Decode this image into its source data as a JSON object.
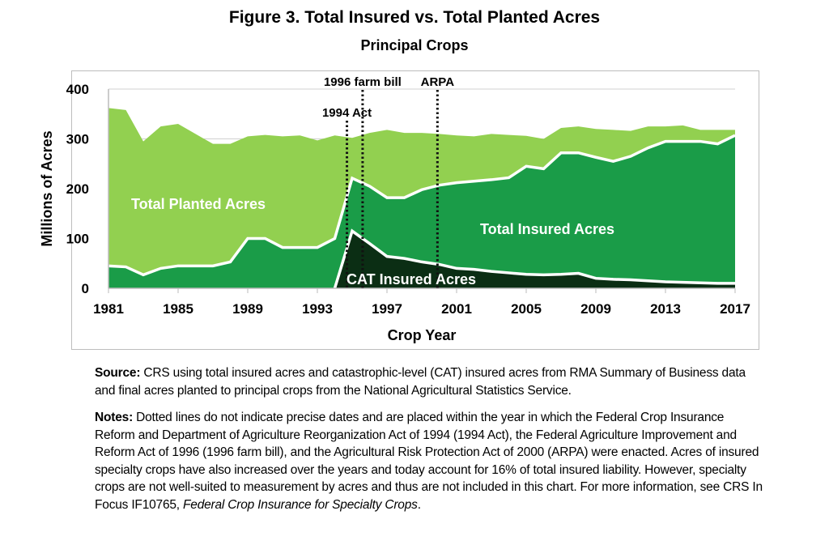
{
  "chart_data": {
    "type": "area",
    "title": "Figure 3. Total Insured vs. Total Planted Acres",
    "subtitle": "Principal Crops",
    "xlabel": "Crop Year",
    "ylabel": "Millions of Acres",
    "xlim": [
      1981,
      2017
    ],
    "ylim": [
      0,
      400
    ],
    "x_ticks": [
      "1981",
      "1985",
      "1989",
      "1993",
      "1997",
      "2001",
      "2005",
      "2009",
      "2013",
      "2017"
    ],
    "y_ticks": [
      "0",
      "100",
      "200",
      "300",
      "400"
    ],
    "grid": true,
    "x": [
      1981,
      1982,
      1983,
      1984,
      1985,
      1986,
      1987,
      1988,
      1989,
      1990,
      1991,
      1992,
      1993,
      1994,
      1995,
      1996,
      1997,
      1998,
      1999,
      2000,
      2001,
      2002,
      2003,
      2004,
      2005,
      2006,
      2007,
      2008,
      2009,
      2010,
      2011,
      2012,
      2013,
      2014,
      2015,
      2016,
      2017
    ],
    "series": [
      {
        "name": "Total Planted Acres",
        "color": "#92d050",
        "values": [
          362,
          358,
          295,
          325,
          330,
          310,
          290,
          290,
          305,
          308,
          305,
          307,
          297,
          307,
          302,
          312,
          318,
          312,
          312,
          310,
          307,
          305,
          310,
          308,
          306,
          300,
          322,
          325,
          320,
          318,
          316,
          325,
          325,
          327,
          318,
          318,
          318
        ]
      },
      {
        "name": "Total Insured Acres",
        "color": "#1a9c48",
        "values": [
          45,
          43,
          27,
          40,
          45,
          45,
          45,
          53,
          100,
          100,
          82,
          82,
          82,
          100,
          221,
          205,
          182,
          182,
          198,
          207,
          212,
          215,
          218,
          222,
          245,
          240,
          272,
          272,
          263,
          255,
          265,
          282,
          295,
          295,
          295,
          290,
          307
        ]
      },
      {
        "name": "CAT Insured Acres",
        "color": "#0b2e14",
        "values": [
          null,
          null,
          null,
          null,
          null,
          null,
          null,
          null,
          null,
          null,
          null,
          null,
          null,
          0,
          115,
          90,
          64,
          60,
          53,
          48,
          40,
          38,
          34,
          31,
          28,
          27,
          28,
          30,
          20,
          18,
          17,
          15,
          13,
          12,
          11,
          10,
          10
        ]
      }
    ],
    "annotations": [
      {
        "label": "1994 Act",
        "x": 1994.7
      },
      {
        "label": "1996 farm bill",
        "x": 1995.6
      },
      {
        "label": "ARPA",
        "x": 1999.9
      }
    ]
  },
  "source": {
    "label": "Source:",
    "text": " CRS using total insured acres and catastrophic-level (CAT) insured acres from RMA Summary of Business data and final acres planted to principal crops from the National Agricultural Statistics Service."
  },
  "notes": {
    "label": "Notes:",
    "text": " Dotted lines do not indicate precise dates and are placed within the year in which the Federal Crop Insurance Reform and Department of Agriculture Reorganization Act of 1994 (1994 Act), the Federal Agriculture Improvement and Reform Act of 1996 (1996 farm bill), and the Agricultural Risk Protection Act of 2000 (ARPA) were enacted. Acres of insured specialty crops have also increased over the years and today account for 16% of total insured liability. However, specialty crops are not well-suited to measurement by acres and thus are not included in this chart. For more information, see CRS In Focus IF10765, ",
    "italic": "Federal Crop Insurance for Specialty Crops",
    "end": "."
  }
}
